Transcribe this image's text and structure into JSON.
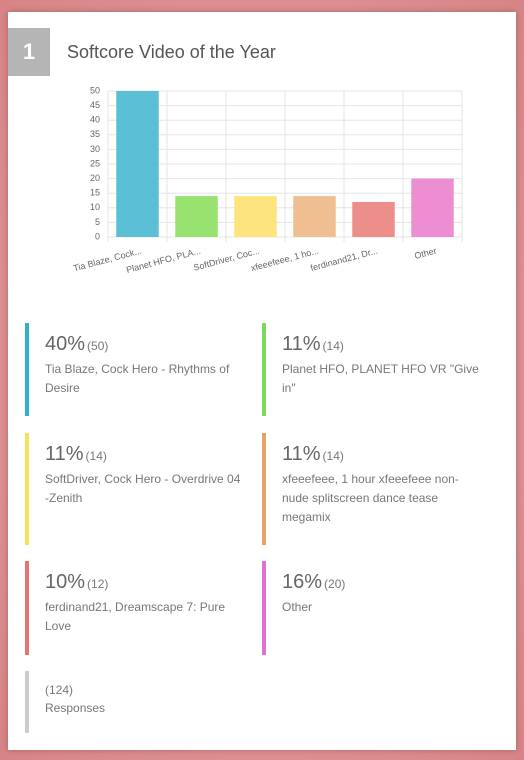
{
  "rank": "1",
  "chart_data": {
    "type": "bar",
    "title": "Softcore Video of the Year",
    "categories": [
      "Tia Blaze, Cock...",
      "Planet HFO, PLA...",
      "SoftDriver, Coc...",
      "xfeeefeee, 1 ho...",
      "ferdinand21, Dr...",
      "Other"
    ],
    "values": [
      50,
      14,
      14,
      14,
      12,
      20
    ],
    "colors": [
      "#5bc0d6",
      "#98e36f",
      "#fde47f",
      "#efbf92",
      "#ec8f8b",
      "#ee8ed2"
    ],
    "ylim": [
      0,
      50
    ],
    "yticks": [
      0,
      5,
      10,
      15,
      20,
      25,
      30,
      35,
      40,
      45,
      50
    ],
    "grid": true
  },
  "results": [
    {
      "percent": "40%",
      "count": "(50)",
      "name": "Tia Blaze, Cock Hero - Rhythms of Desire",
      "color": "#2fb0c9"
    },
    {
      "percent": "11%",
      "count": "(14)",
      "name": "Planet HFO, PLANET HFO VR \"Give in\"",
      "color": "#7dd957"
    },
    {
      "percent": "11%",
      "count": "(14)",
      "name": "SoftDriver, Cock Hero - Overdrive 04 -Zenith",
      "color": "#fbdf5a"
    },
    {
      "percent": "11%",
      "count": "(14)",
      "name": "xfeeefeee, 1 hour xfeeefeee non-nude splitscreen dance tease megamix",
      "color": "#e9a46a"
    },
    {
      "percent": "10%",
      "count": "(12)",
      "name": "ferdinand21, Dreamscape 7: Pure Love",
      "color": "#e47571"
    },
    {
      "percent": "16%",
      "count": "(20)",
      "name": "Other",
      "color": "#e070d0"
    }
  ],
  "responses": {
    "count": "(124)",
    "label": "Responses"
  }
}
